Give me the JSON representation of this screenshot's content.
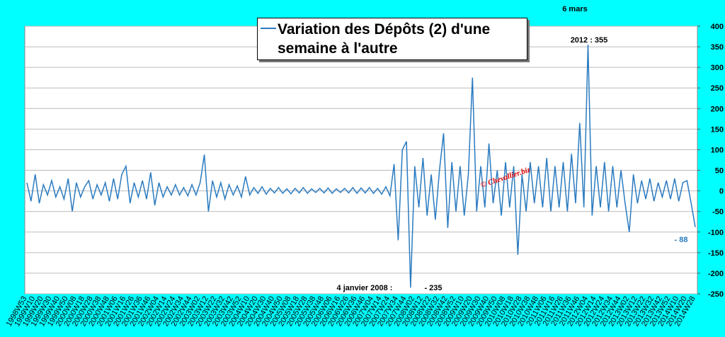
{
  "chart_data": {
    "type": "line",
    "watermark": "© Chevallier.biz",
    "annotations": [
      "6 mars",
      "2012 : 355",
      "4 janvier 2008 :",
      "- 235",
      "- 88"
    ],
    "categories": [
      "1998W53",
      null,
      "1999W10",
      null,
      "1999W20",
      null,
      "1999W30",
      null,
      "1999W40",
      null,
      "1999W50",
      null,
      "2000W08",
      null,
      "2000W18",
      null,
      "2000W28",
      null,
      "2000W38",
      null,
      "2000W48",
      null,
      "2001W06",
      null,
      "2001W16",
      null,
      "2001W26",
      null,
      "2001W36",
      null,
      "2001W46",
      null,
      "2002W04",
      null,
      "2002W14",
      null,
      "2002W24",
      null,
      "2002W34",
      null,
      "2002W44",
      null,
      "2003W02",
      null,
      "2003W12",
      null,
      "2003W22",
      null,
      "2003W32",
      null,
      "2003W42",
      null,
      "2003W52",
      null,
      "2004W10",
      null,
      "2004W20",
      null,
      "2004W30",
      null,
      "2004W40",
      null,
      "2004W50",
      null,
      "2005W08",
      null,
      "2005W18",
      null,
      "2005W28",
      null,
      "2005W38",
      null,
      "2005W48",
      null,
      "2006W06",
      null,
      "2006W16",
      null,
      "2006W26",
      null,
      "2006W36",
      null,
      "2006W46",
      null,
      "2007W04",
      null,
      "2007W14",
      null,
      "2007W24",
      null,
      "2007W34",
      null,
      "2007W44",
      null,
      "2008W02",
      null,
      "2008W12",
      null,
      "2008W22",
      null,
      "2008W32",
      null,
      "2008W42",
      null,
      "2008W52",
      null,
      "2009W10",
      null,
      "2009W20",
      null,
      "2009W30",
      null,
      "2009W40",
      null,
      "2009W50",
      null,
      "2010W08",
      null,
      "2010W18",
      null,
      "2010W28",
      null,
      "2010W38",
      null,
      "2010W48",
      null,
      "2011W06",
      null,
      "2011W16",
      null,
      "2011W26",
      null,
      "2011W36",
      null,
      "2011W46",
      null,
      "2012W04",
      null,
      "2012W14",
      null,
      "2012W24",
      null,
      "2012W34",
      null,
      "2012W44",
      null,
      "2013W02",
      null,
      "2013W12",
      null,
      "2013W22",
      null,
      "2013W32",
      null,
      "2013W42",
      null,
      "2013W52",
      null,
      "2014W10",
      null,
      "2014W20",
      null,
      "2014W28"
    ],
    "series": [
      {
        "name": "Variation des Dépôts (2) d'une semaine à l'autre",
        "color": "#2a7bc0",
        "values": [
          20,
          -25,
          40,
          -30,
          15,
          -10,
          25,
          -15,
          10,
          -20,
          30,
          -50,
          20,
          -15,
          10,
          25,
          -20,
          15,
          -10,
          20,
          -25,
          30,
          -20,
          40,
          60,
          -30,
          20,
          -15,
          25,
          -20,
          45,
          -35,
          20,
          -15,
          10,
          -10,
          15,
          -10,
          8,
          -12,
          15,
          -10,
          20,
          88,
          -50,
          25,
          -15,
          20,
          -20,
          15,
          -10,
          12,
          -15,
          35,
          -10,
          8,
          -6,
          10,
          -8,
          6,
          -5,
          8,
          -6,
          5,
          -7,
          6,
          -5,
          8,
          -6,
          5,
          -4,
          6,
          -5,
          7,
          -6,
          5,
          -4,
          6,
          -5,
          8,
          -6,
          7,
          -5,
          8,
          -6,
          6,
          -8,
          10,
          -12,
          65,
          -120,
          100,
          120,
          -235,
          60,
          -40,
          80,
          -60,
          40,
          -70,
          50,
          140,
          -90,
          70,
          -50,
          60,
          -60,
          40,
          275,
          -50,
          60,
          -40,
          115,
          -30,
          50,
          -60,
          70,
          -40,
          60,
          -155,
          40,
          -50,
          70,
          -30,
          60,
          -40,
          80,
          -50,
          60,
          -40,
          70,
          -50,
          90,
          -30,
          165,
          -40,
          355,
          -60,
          60,
          -40,
          70,
          -50,
          60,
          -40,
          50,
          -30,
          -100,
          40,
          -30,
          25,
          -20,
          30,
          -25,
          20,
          -15,
          25,
          -20,
          30,
          -25,
          20,
          25,
          -30,
          -88
        ]
      }
    ],
    "ylim": [
      -250,
      400
    ],
    "yticks": [
      -250,
      -200,
      -150,
      -100,
      -50,
      0,
      50,
      100,
      150,
      200,
      250,
      300,
      350,
      400
    ],
    "grid": true
  }
}
